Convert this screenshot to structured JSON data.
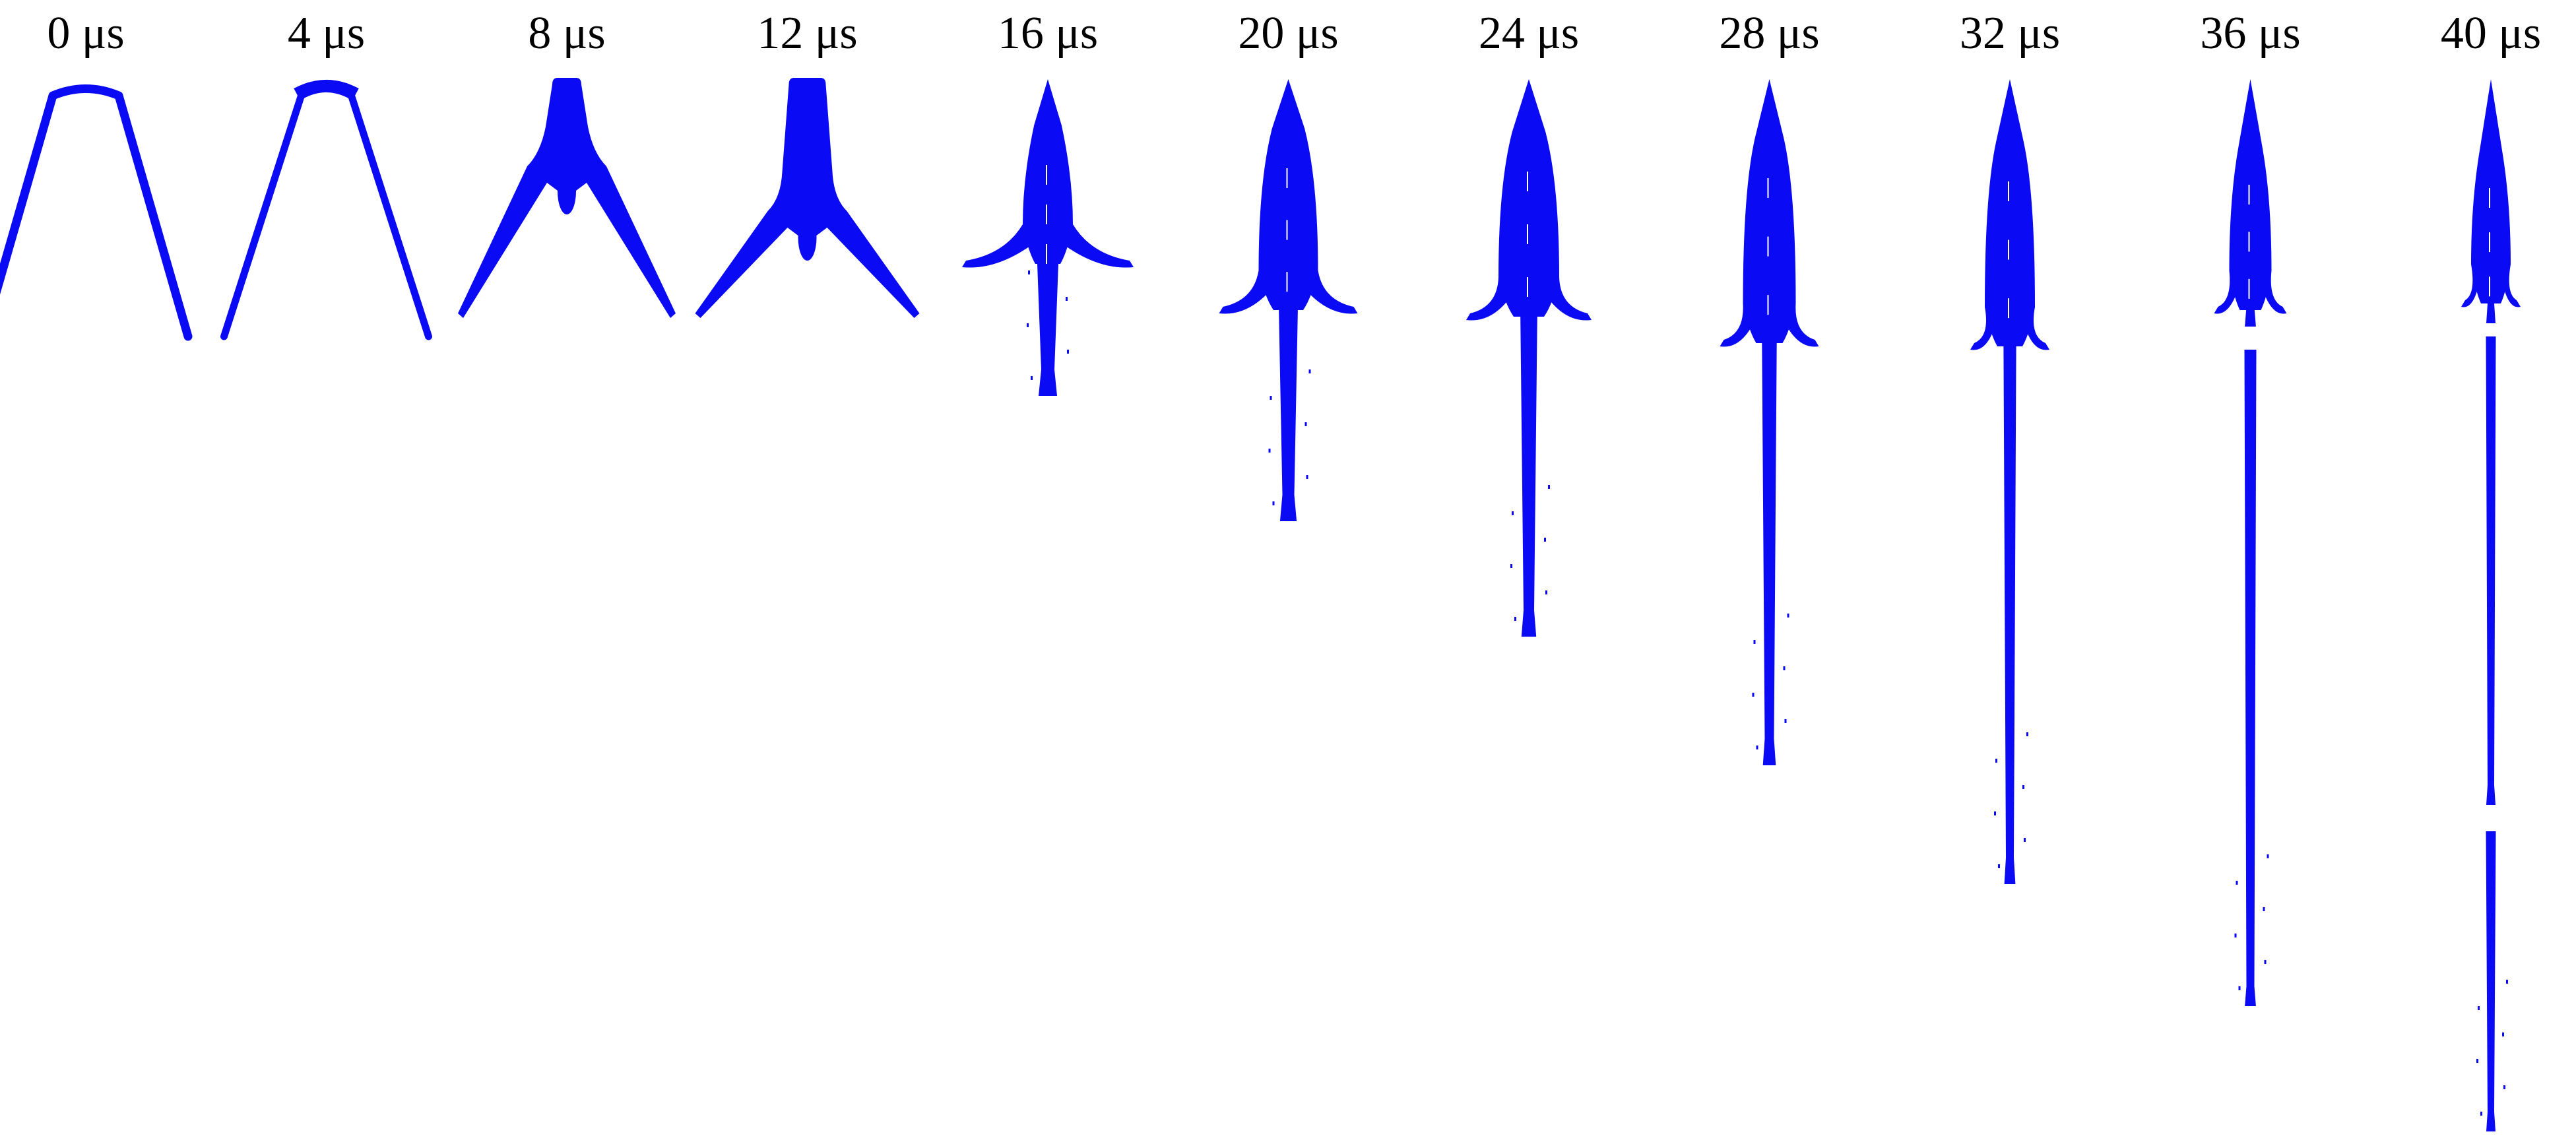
{
  "colors": {
    "jet": "#0A0AF5",
    "background": "#FFFFFF",
    "label": "#000000"
  },
  "frames": [
    {
      "label": "0 μs",
      "stage": "v-liner"
    },
    {
      "label": "4 μs",
      "stage": "v-liner"
    },
    {
      "label": "8 μs",
      "stage": "jet-forming"
    },
    {
      "label": "12 μs",
      "stage": "jet-forming"
    },
    {
      "label": "16 μs",
      "stage": "jet-stretching"
    },
    {
      "label": "20 μs",
      "stage": "jet-stretching"
    },
    {
      "label": "24 μs",
      "stage": "jet-stretching"
    },
    {
      "label": "28 μs",
      "stage": "jet-stretching"
    },
    {
      "label": "32 μs",
      "stage": "jet-stretching"
    },
    {
      "label": "36 μs",
      "stage": "jet-particulating"
    },
    {
      "label": "40 μs",
      "stage": "jet-particulating"
    }
  ]
}
